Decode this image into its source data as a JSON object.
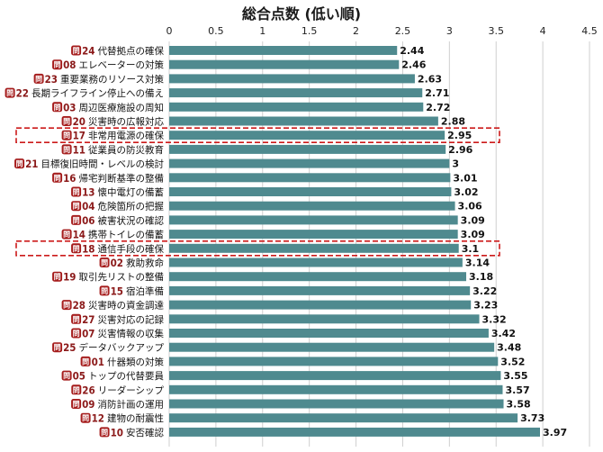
{
  "title": "総合点数 (低い順)",
  "colors": {
    "bar": "#4f8a8f",
    "grid": "#cfcfcf",
    "badge": "#a51c1c",
    "qnum": "#8b1a1a",
    "highlight": "#cc1a1a"
  },
  "badge_char": "問",
  "chart_data": {
    "type": "bar",
    "orientation": "horizontal",
    "title": "総合点数 (低い順)",
    "xlim": [
      0,
      4.5
    ],
    "xticks": [
      "0",
      "0.5",
      "1",
      "1.5",
      "2",
      "2.5",
      "3",
      "3.5",
      "4",
      "4.5"
    ],
    "grid": true,
    "highlighted": [
      "17",
      "18"
    ],
    "items": [
      {
        "q": "24",
        "label": "代替拠点の確保",
        "value": 2.44,
        "value_label": "2.44"
      },
      {
        "q": "08",
        "label": "エレベーターの対策",
        "value": 2.46,
        "value_label": "2.46"
      },
      {
        "q": "23",
        "label": "重要業務のリソース対策",
        "value": 2.63,
        "value_label": "2.63"
      },
      {
        "q": "22",
        "label": "長期ライフライン停止への備え",
        "value": 2.71,
        "value_label": "2.71"
      },
      {
        "q": "03",
        "label": "周辺医療施設の周知",
        "value": 2.72,
        "value_label": "2.72"
      },
      {
        "q": "20",
        "label": "災害時の広報対応",
        "value": 2.88,
        "value_label": "2.88"
      },
      {
        "q": "17",
        "label": "非常用電源の確保",
        "value": 2.95,
        "value_label": "2.95"
      },
      {
        "q": "11",
        "label": "従業員の防災教育",
        "value": 2.96,
        "value_label": "2.96"
      },
      {
        "q": "21",
        "label": "目標復旧時間・レベルの検討",
        "value": 3.0,
        "value_label": "3"
      },
      {
        "q": "16",
        "label": "帰宅判断基準の整備",
        "value": 3.01,
        "value_label": "3.01"
      },
      {
        "q": "13",
        "label": "懐中電灯の備蓄",
        "value": 3.02,
        "value_label": "3.02"
      },
      {
        "q": "04",
        "label": "危険箇所の把握",
        "value": 3.06,
        "value_label": "3.06"
      },
      {
        "q": "06",
        "label": "被害状況の確認",
        "value": 3.09,
        "value_label": "3.09"
      },
      {
        "q": "14",
        "label": "携帯トイレの備蓄",
        "value": 3.09,
        "value_label": "3.09"
      },
      {
        "q": "18",
        "label": "通信手段の確保",
        "value": 3.1,
        "value_label": "3.1"
      },
      {
        "q": "02",
        "label": "救助救命",
        "value": 3.14,
        "value_label": "3.14"
      },
      {
        "q": "19",
        "label": "取引先リストの整備",
        "value": 3.18,
        "value_label": "3.18"
      },
      {
        "q": "15",
        "label": "宿泊準備",
        "value": 3.22,
        "value_label": "3.22"
      },
      {
        "q": "28",
        "label": "災害時の資金調達",
        "value": 3.23,
        "value_label": "3.23"
      },
      {
        "q": "27",
        "label": "災害対応の記録",
        "value": 3.32,
        "value_label": "3.32"
      },
      {
        "q": "07",
        "label": "災害情報の収集",
        "value": 3.42,
        "value_label": "3.42"
      },
      {
        "q": "25",
        "label": "データバックアップ",
        "value": 3.48,
        "value_label": "3.48"
      },
      {
        "q": "01",
        "label": "什器類の対策",
        "value": 3.52,
        "value_label": "3.52"
      },
      {
        "q": "05",
        "label": "トップの代替要員",
        "value": 3.55,
        "value_label": "3.55"
      },
      {
        "q": "26",
        "label": "リーダーシップ",
        "value": 3.57,
        "value_label": "3.57"
      },
      {
        "q": "09",
        "label": "消防計画の運用",
        "value": 3.58,
        "value_label": "3.58"
      },
      {
        "q": "12",
        "label": "建物の耐震性",
        "value": 3.73,
        "value_label": "3.73"
      },
      {
        "q": "10",
        "label": "安否確認",
        "value": 3.97,
        "value_label": "3.97"
      }
    ]
  }
}
